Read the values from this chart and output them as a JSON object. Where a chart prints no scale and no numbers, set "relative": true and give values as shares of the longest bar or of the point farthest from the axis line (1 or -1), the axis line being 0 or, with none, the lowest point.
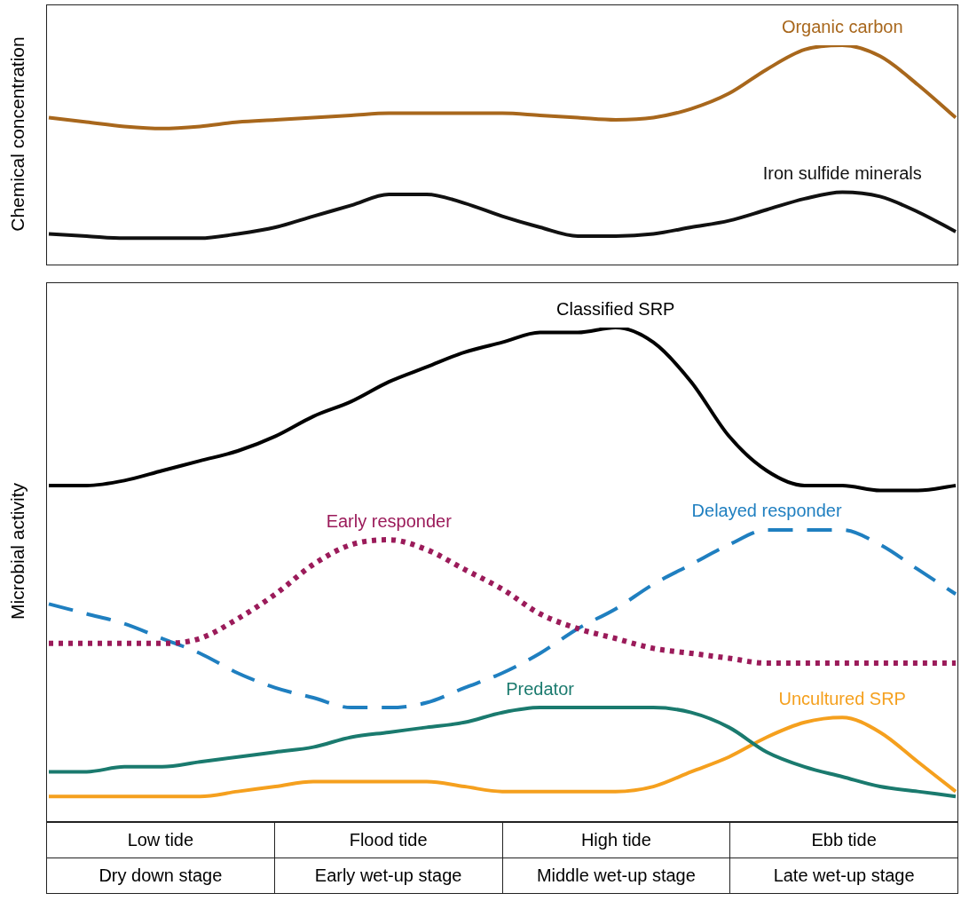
{
  "chart_data": [
    {
      "type": "line",
      "relative": true,
      "ylabel": "Chemical concentration",
      "tick_labels": false,
      "categories": [
        null,
        null,
        null,
        null,
        null,
        null,
        null,
        null,
        null,
        null,
        null,
        null,
        null,
        null,
        null,
        null,
        null,
        null,
        null,
        null,
        null,
        null,
        null,
        null,
        null
      ],
      "series": [
        {
          "name": "Organic carbon",
          "color": "#a8671c",
          "line_style": "solid",
          "values": [
            0.67,
            0.65,
            0.63,
            0.62,
            0.63,
            0.65,
            0.66,
            0.67,
            0.68,
            0.69,
            0.69,
            0.69,
            0.69,
            0.68,
            0.67,
            0.66,
            0.67,
            0.71,
            0.78,
            0.89,
            0.98,
            1,
            0.95,
            0.82,
            0.67
          ]
        },
        {
          "name": "Iron sulfide minerals",
          "color": "#111111",
          "line_style": "solid",
          "values": [
            0.14,
            0.13,
            0.12,
            0.12,
            0.12,
            0.14,
            0.17,
            0.22,
            0.27,
            0.32,
            0.32,
            0.28,
            0.22,
            0.17,
            0.13,
            0.13,
            0.14,
            0.17,
            0.2,
            0.25,
            0.3,
            0.33,
            0.31,
            0.24,
            0.15
          ]
        }
      ]
    },
    {
      "type": "line",
      "relative": true,
      "ylabel": "Microbial activity",
      "tick_labels": false,
      "categories": [
        null,
        null,
        null,
        null,
        null,
        null,
        null,
        null,
        null,
        null,
        null,
        null,
        null,
        null,
        null,
        null,
        null,
        null,
        null,
        null,
        null,
        null,
        null,
        null,
        null
      ],
      "series": [
        {
          "name": "Classified SRP",
          "color": "#000000",
          "line_style": "solid",
          "values": [
            0.68,
            0.68,
            0.69,
            0.71,
            0.73,
            0.75,
            0.78,
            0.82,
            0.85,
            0.89,
            0.92,
            0.95,
            0.97,
            0.99,
            0.99,
            1,
            0.97,
            0.89,
            0.78,
            0.71,
            0.68,
            0.68,
            0.67,
            0.67,
            0.68
          ]
        },
        {
          "name": "Early responder",
          "color": "#9b1b5a",
          "line_style": "dotted",
          "values": [
            0.36,
            0.36,
            0.36,
            0.36,
            0.37,
            0.41,
            0.46,
            0.52,
            0.56,
            0.57,
            0.55,
            0.51,
            0.47,
            0.42,
            0.39,
            0.37,
            0.35,
            0.34,
            0.33,
            0.32,
            0.32,
            0.32,
            0.32,
            0.32,
            0.32
          ]
        },
        {
          "name": "Delayed responder",
          "color": "#1f7fc0",
          "line_style": "dashed",
          "values": [
            0.44,
            0.42,
            0.4,
            0.37,
            0.34,
            0.3,
            0.27,
            0.25,
            0.23,
            0.23,
            0.24,
            0.27,
            0.3,
            0.34,
            0.39,
            0.43,
            0.48,
            0.52,
            0.56,
            0.59,
            0.59,
            0.59,
            0.56,
            0.51,
            0.46
          ]
        },
        {
          "name": "Predator",
          "color": "#1a7a6e",
          "line_style": "solid",
          "values": [
            0.1,
            0.1,
            0.11,
            0.11,
            0.12,
            0.13,
            0.14,
            0.15,
            0.17,
            0.18,
            0.19,
            0.2,
            0.22,
            0.23,
            0.23,
            0.23,
            0.23,
            0.22,
            0.19,
            0.14,
            0.11,
            0.09,
            0.07,
            0.06,
            0.05
          ]
        },
        {
          "name": "Uncultured SRP",
          "color": "#f5a01e",
          "line_style": "solid",
          "values": [
            0.05,
            0.05,
            0.05,
            0.05,
            0.05,
            0.06,
            0.07,
            0.08,
            0.08,
            0.08,
            0.08,
            0.07,
            0.06,
            0.06,
            0.06,
            0.06,
            0.07,
            0.1,
            0.13,
            0.17,
            0.2,
            0.21,
            0.18,
            0.12,
            0.06
          ]
        }
      ],
      "annotations": [
        "Low tide",
        "Flood tide",
        "High tide",
        "Ebb tide",
        "Dry down stage",
        "Early wet-up stage",
        "Middle wet-up stage",
        "Late wet-up stage"
      ]
    }
  ]
}
